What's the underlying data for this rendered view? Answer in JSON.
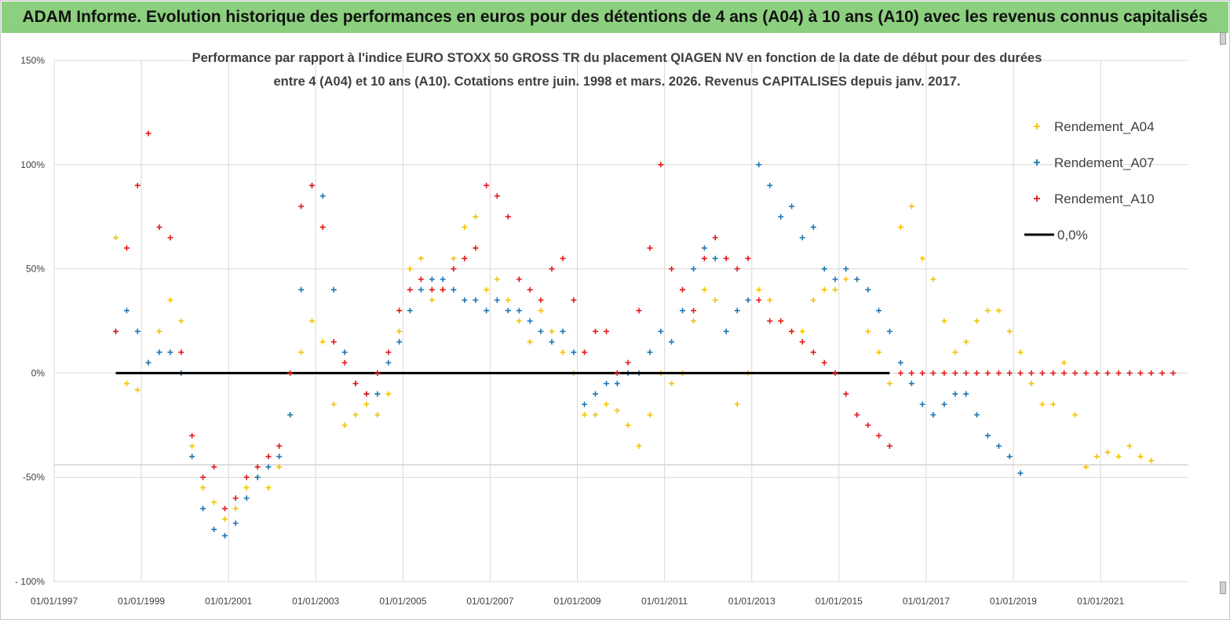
{
  "banner": {
    "title": "ADAM Informe. Evolution historique des performances en euros pour des détentions de 4 ans (A04) à 10 ans (A10) avec les revenus connus capitalisés"
  },
  "colors": {
    "banner_bg": "#8ccf7e",
    "A04": "#f5c200",
    "A07": "#1f77b4",
    "A10": "#e31a1c",
    "zero_line": "#000000",
    "grid": "#d9d9d9"
  },
  "chart_data": {
    "type": "scatter",
    "title": "Performance par rapport à l'indice EURO STOXX 50 GROSS TR  du placement QIAGEN NV en fonction de la date de début pour des durées",
    "subtitle": "entre 4 (A04) et 10 ans (A10). Cotations entre juin. 1998 et mars. 2026. Revenus CAPITALISES depuis janv. 2017.",
    "xlabel": "",
    "ylabel": "",
    "x_range": [
      "1997-01-01",
      "2022-12-31"
    ],
    "ylim": [
      -100,
      150
    ],
    "y_ticks": [
      {
        "value": 150,
        "label": "150%"
      },
      {
        "value": 100,
        "label": "100%"
      },
      {
        "value": 50,
        "label": "50%"
      },
      {
        "value": 0,
        "label": "0%"
      },
      {
        "value": -50,
        "label": "-50%"
      },
      {
        "value": -100,
        "label": "- 100%"
      }
    ],
    "x_ticks": [
      {
        "value": "1997-01-01",
        "label": "01/01/1997"
      },
      {
        "value": "1999-01-01",
        "label": "01/01/1999"
      },
      {
        "value": "2001-01-01",
        "label": "01/01/2001"
      },
      {
        "value": "2003-01-01",
        "label": "01/01/2003"
      },
      {
        "value": "2005-01-01",
        "label": "01/01/2005"
      },
      {
        "value": "2007-01-01",
        "label": "01/01/2007"
      },
      {
        "value": "2009-01-01",
        "label": "01/01/2009"
      },
      {
        "value": "2011-01-01",
        "label": "01/01/2011"
      },
      {
        "value": "2013-01-01",
        "label": "01/01/2013"
      },
      {
        "value": "2015-01-01",
        "label": "01/01/2015"
      },
      {
        "value": "2017-01-01",
        "label": "01/01/2017"
      },
      {
        "value": "2019-01-01",
        "label": "01/01/2019"
      },
      {
        "value": "2021-01-01",
        "label": "01/01/2021"
      }
    ],
    "grid": true,
    "legend": {
      "placement": "top-right",
      "entries": [
        {
          "name": "Rendement_A04",
          "marker": "plus",
          "color": "#f5c200"
        },
        {
          "name": "Rendement_A07",
          "marker": "plus",
          "color": "#1f77b4"
        },
        {
          "name": "Rendement_A10",
          "marker": "plus",
          "color": "#e31a1c"
        },
        {
          "name": "0,0%",
          "marker": "line",
          "color": "#000000"
        }
      ]
    },
    "series": [
      {
        "name": "Rendement_A04",
        "color": "#f5c200",
        "x": [
          "1998-06-01",
          "1998-09-01",
          "1998-12-01",
          "1999-03-01",
          "1999-06-01",
          "1999-09-01",
          "1999-12-01",
          "2000-03-01",
          "2000-06-01",
          "2000-09-01",
          "2000-12-01",
          "2001-03-01",
          "2001-06-01",
          "2001-09-01",
          "2001-12-01",
          "2002-03-01",
          "2002-06-01",
          "2002-09-01",
          "2002-12-01",
          "2003-03-01",
          "2003-06-01",
          "2003-09-01",
          "2003-12-01",
          "2004-03-01",
          "2004-06-01",
          "2004-09-01",
          "2004-12-01",
          "2005-03-01",
          "2005-06-01",
          "2005-09-01",
          "2005-12-01",
          "2006-03-01",
          "2006-06-01",
          "2006-09-01",
          "2006-12-01",
          "2007-03-01",
          "2007-06-01",
          "2007-09-01",
          "2007-12-01",
          "2008-03-01",
          "2008-06-01",
          "2008-09-01",
          "2008-12-01",
          "2009-03-01",
          "2009-06-01",
          "2009-09-01",
          "2009-12-01",
          "2010-03-01",
          "2010-06-01",
          "2010-09-01",
          "2010-12-01",
          "2011-03-01",
          "2011-06-01",
          "2011-09-01",
          "2011-12-01",
          "2012-03-01",
          "2012-06-01",
          "2012-09-01",
          "2012-12-01",
          "2013-03-01",
          "2013-06-01",
          "2013-09-01",
          "2013-12-01",
          "2014-03-01",
          "2014-06-01",
          "2014-09-01",
          "2014-12-01",
          "2015-03-01",
          "2015-06-01",
          "2015-09-01",
          "2015-12-01",
          "2016-03-01",
          "2016-06-01",
          "2016-09-01",
          "2016-12-01",
          "2017-03-01",
          "2017-06-01",
          "2017-09-01",
          "2017-12-01",
          "2018-03-01",
          "2018-06-01",
          "2018-09-01",
          "2018-12-01",
          "2019-03-01",
          "2019-06-01",
          "2019-09-01",
          "2019-12-01",
          "2020-03-01",
          "2020-06-01",
          "2020-09-01",
          "2020-12-01",
          "2021-03-01",
          "2021-06-01",
          "2021-09-01",
          "2021-12-01",
          "2022-03-01"
        ],
        "y": [
          65,
          -5,
          -8,
          5,
          20,
          35,
          25,
          -35,
          -55,
          -62,
          -70,
          -65,
          -55,
          -50,
          -55,
          -45,
          -20,
          10,
          25,
          15,
          -15,
          -25,
          -20,
          -15,
          -20,
          -10,
          20,
          50,
          55,
          35,
          40,
          55,
          70,
          75,
          40,
          45,
          35,
          25,
          15,
          30,
          20,
          10,
          0,
          -20,
          -20,
          -15,
          -18,
          -25,
          -35,
          -20,
          0,
          -5,
          0,
          25,
          40,
          35,
          20,
          -15,
          0,
          40,
          35,
          25,
          20,
          20,
          35,
          40,
          40,
          45,
          45,
          20,
          10,
          -5,
          70,
          80,
          55,
          45,
          25,
          10,
          15,
          25,
          30,
          30,
          20,
          10,
          -5,
          -15,
          -15,
          5,
          -20,
          -45,
          -40,
          -38,
          -40,
          -35,
          -40,
          -42
        ]
      },
      {
        "name": "Rendement_A07",
        "color": "#1f77b4",
        "x": [
          "1998-06-01",
          "1998-09-01",
          "1998-12-01",
          "1999-03-01",
          "1999-06-01",
          "1999-09-01",
          "1999-12-01",
          "2000-03-01",
          "2000-06-01",
          "2000-09-01",
          "2000-12-01",
          "2001-03-01",
          "2001-06-01",
          "2001-09-01",
          "2001-12-01",
          "2002-03-01",
          "2002-06-01",
          "2002-09-01",
          "2002-12-01",
          "2003-03-01",
          "2003-06-01",
          "2003-09-01",
          "2003-12-01",
          "2004-03-01",
          "2004-06-01",
          "2004-09-01",
          "2004-12-01",
          "2005-03-01",
          "2005-06-01",
          "2005-09-01",
          "2005-12-01",
          "2006-03-01",
          "2006-06-01",
          "2006-09-01",
          "2006-12-01",
          "2007-03-01",
          "2007-06-01",
          "2007-09-01",
          "2007-12-01",
          "2008-03-01",
          "2008-06-01",
          "2008-09-01",
          "2008-12-01",
          "2009-03-01",
          "2009-06-01",
          "2009-09-01",
          "2009-12-01",
          "2010-03-01",
          "2010-06-01",
          "2010-09-01",
          "2010-12-01",
          "2011-03-01",
          "2011-06-01",
          "2011-09-01",
          "2011-12-01",
          "2012-03-01",
          "2012-06-01",
          "2012-09-01",
          "2012-12-01",
          "2013-03-01",
          "2013-06-01",
          "2013-09-01",
          "2013-12-01",
          "2014-03-01",
          "2014-06-01",
          "2014-09-01",
          "2014-12-01",
          "2015-03-01",
          "2015-06-01",
          "2015-09-01",
          "2015-12-01",
          "2016-03-01",
          "2016-06-01",
          "2016-09-01",
          "2016-12-01",
          "2017-03-01",
          "2017-06-01",
          "2017-09-01",
          "2017-12-01",
          "2018-03-01",
          "2018-06-01",
          "2018-09-01",
          "2018-12-01",
          "2019-03-01"
        ],
        "y": [
          20,
          30,
          20,
          5,
          10,
          10,
          0,
          -40,
          -65,
          -75,
          -78,
          -72,
          -60,
          -50,
          -45,
          -40,
          -20,
          40,
          90,
          85,
          40,
          10,
          -5,
          -10,
          -10,
          5,
          15,
          30,
          40,
          45,
          45,
          40,
          35,
          35,
          30,
          35,
          30,
          30,
          25,
          20,
          15,
          20,
          10,
          -15,
          -10,
          -5,
          -5,
          0,
          0,
          10,
          20,
          15,
          30,
          50,
          60,
          55,
          20,
          30,
          35,
          100,
          90,
          75,
          80,
          65,
          70,
          50,
          45,
          50,
          45,
          40,
          30,
          20,
          5,
          -5,
          -15,
          -20,
          -15,
          -10,
          -10,
          -20,
          -30,
          -35,
          -40,
          -48
        ]
      },
      {
        "name": "Rendement_A10",
        "color": "#e31a1c",
        "x": [
          "1998-06-01",
          "1998-09-01",
          "1998-12-01",
          "1999-03-01",
          "1999-06-01",
          "1999-09-01",
          "1999-12-01",
          "2000-03-01",
          "2000-06-01",
          "2000-09-01",
          "2000-12-01",
          "2001-03-01",
          "2001-06-01",
          "2001-09-01",
          "2001-12-01",
          "2002-03-01",
          "2002-06-01",
          "2002-09-01",
          "2002-12-01",
          "2003-03-01",
          "2003-06-01",
          "2003-09-01",
          "2003-12-01",
          "2004-03-01",
          "2004-06-01",
          "2004-09-01",
          "2004-12-01",
          "2005-03-01",
          "2005-06-01",
          "2005-09-01",
          "2005-12-01",
          "2006-03-01",
          "2006-06-01",
          "2006-09-01",
          "2006-12-01",
          "2007-03-01",
          "2007-06-01",
          "2007-09-01",
          "2007-12-01",
          "2008-03-01",
          "2008-06-01",
          "2008-09-01",
          "2008-12-01",
          "2009-03-01",
          "2009-06-01",
          "2009-09-01",
          "2009-12-01",
          "2010-03-01",
          "2010-06-01",
          "2010-09-01",
          "2010-12-01",
          "2011-03-01",
          "2011-06-01",
          "2011-09-01",
          "2011-12-01",
          "2012-03-01",
          "2012-06-01",
          "2012-09-01",
          "2012-12-01",
          "2013-03-01",
          "2013-06-01",
          "2013-09-01",
          "2013-12-01",
          "2014-03-01",
          "2014-06-01",
          "2014-09-01",
          "2014-12-01",
          "2015-03-01",
          "2015-06-01",
          "2015-09-01",
          "2015-12-01",
          "2016-03-01",
          "2016-06-01",
          "2016-09-01",
          "2016-12-01",
          "2017-03-01",
          "2017-06-01",
          "2017-09-01",
          "2017-12-01",
          "2018-03-01",
          "2018-06-01",
          "2018-09-01",
          "2018-12-01",
          "2019-03-01",
          "2019-06-01",
          "2019-09-01",
          "2019-12-01",
          "2020-03-01",
          "2020-06-01",
          "2020-09-01",
          "2020-12-01",
          "2021-03-01",
          "2021-06-01",
          "2021-09-01",
          "2021-12-01",
          "2022-03-01",
          "2022-06-01",
          "2022-09-01"
        ],
        "y": [
          20,
          60,
          90,
          115,
          70,
          65,
          10,
          -30,
          -50,
          -45,
          -65,
          -60,
          -50,
          -45,
          -40,
          -35,
          0,
          80,
          90,
          70,
          15,
          5,
          -5,
          -10,
          0,
          10,
          30,
          40,
          45,
          40,
          40,
          50,
          55,
          60,
          90,
          85,
          75,
          45,
          40,
          35,
          50,
          55,
          35,
          10,
          20,
          20,
          0,
          5,
          30,
          60,
          100,
          50,
          40,
          30,
          55,
          65,
          55,
          50,
          55,
          35,
          25,
          25,
          20,
          15,
          10,
          5,
          0,
          -10,
          -20,
          -25,
          -30,
          -35,
          0,
          0,
          0,
          0,
          0,
          0,
          0,
          0,
          0,
          0,
          0,
          0,
          0,
          0,
          0,
          0,
          0,
          0,
          0,
          0,
          0,
          0,
          0,
          0,
          0,
          0
        ]
      },
      {
        "name": "0,0%",
        "color": "#000000",
        "type": "line",
        "x": [
          "1998-06-01",
          "2016-03-01"
        ],
        "y": [
          0,
          0
        ]
      }
    ]
  }
}
